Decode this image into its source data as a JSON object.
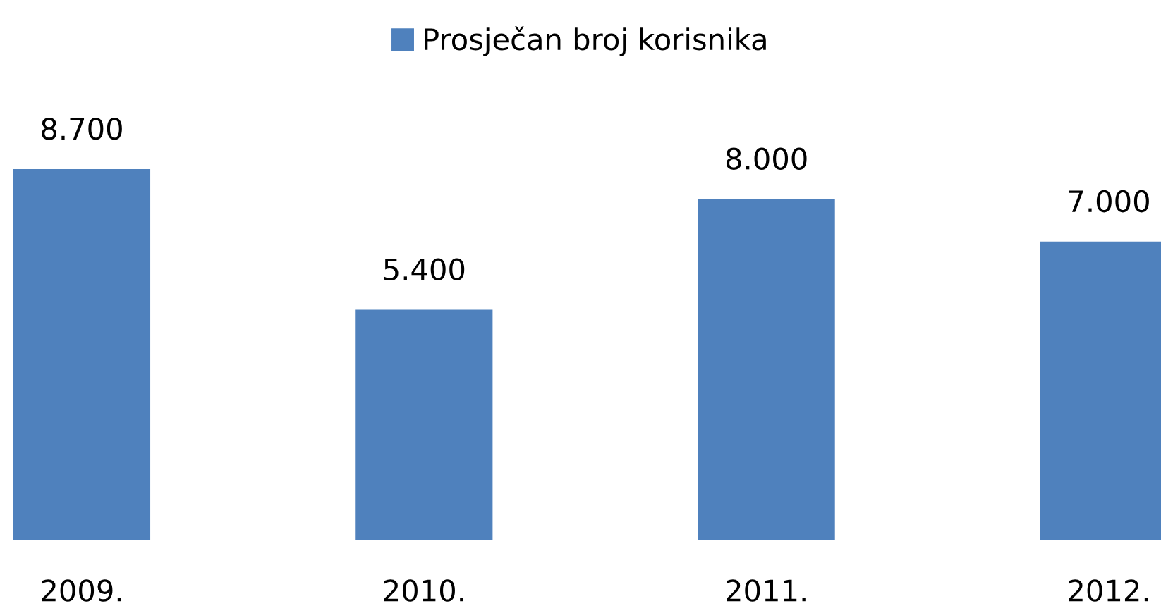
{
  "chart_data": {
    "type": "bar",
    "categories": [
      "2009.",
      "2010.",
      "2011.",
      "2012."
    ],
    "series": [
      {
        "name": "Prosječan broj korisnika",
        "color": "#4f81bd",
        "values": [
          8700,
          5400,
          8000,
          7000
        ],
        "value_labels": [
          "8.700",
          "5.400",
          "8.000",
          "7.000"
        ]
      }
    ],
    "legend": "top",
    "grid": false
  }
}
